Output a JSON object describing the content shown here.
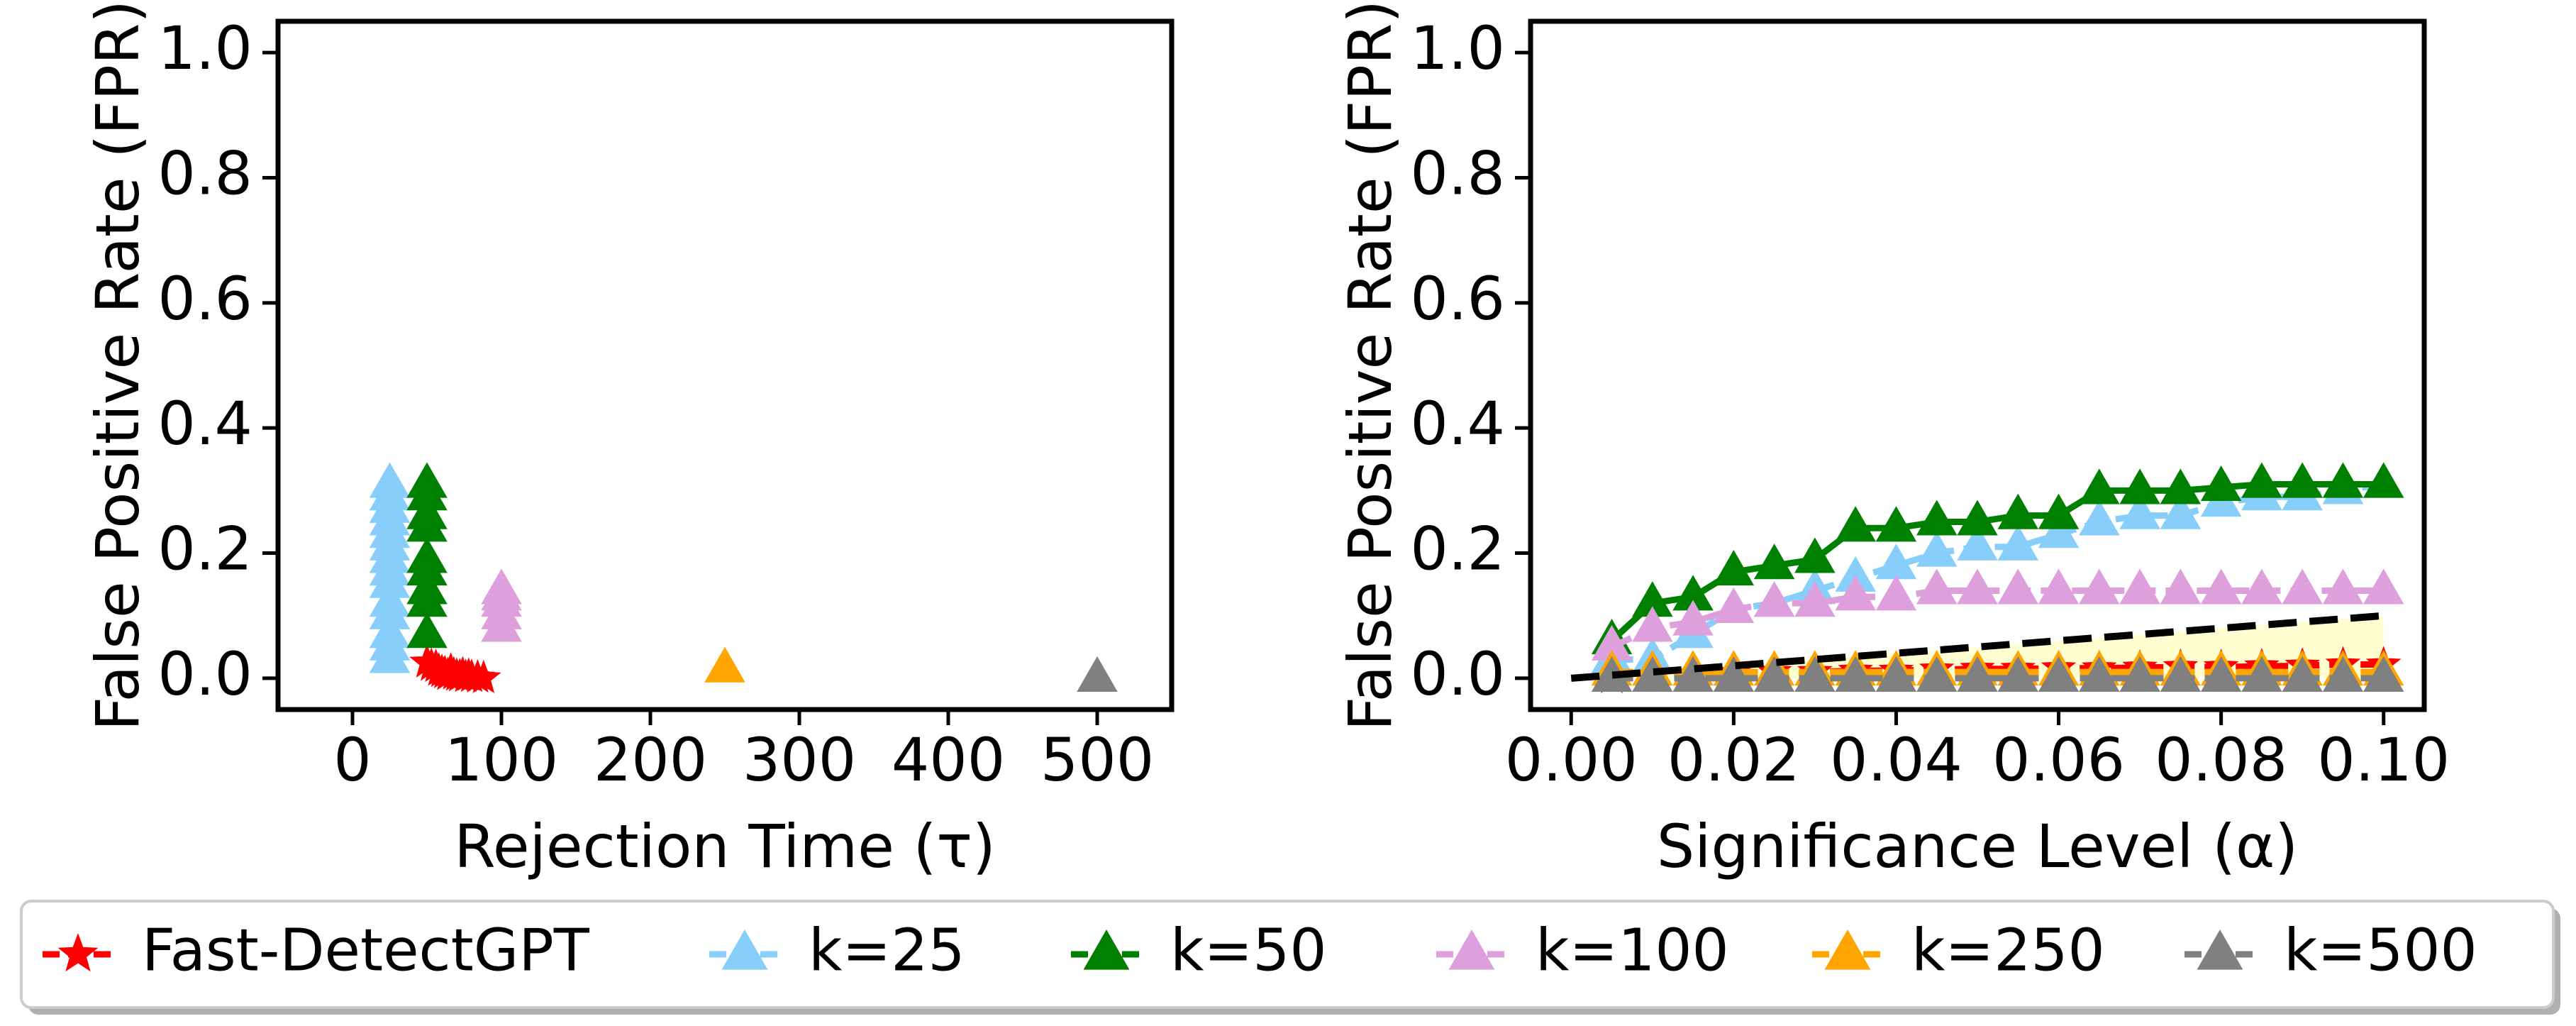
{
  "chart_data": [
    {
      "type": "scatter",
      "xlabel": "Rejection Time (τ)",
      "ylabel": "False Positive Rate (FPR)",
      "xlim": [
        -50,
        550
      ],
      "ylim": [
        -0.05,
        1.05
      ],
      "xticks": [
        0,
        100,
        200,
        300,
        400,
        500
      ],
      "yticks": [
        0.0,
        0.2,
        0.4,
        0.6,
        0.8,
        1.0
      ],
      "xtick_labels": [
        "0",
        "100",
        "200",
        "300",
        "400",
        "500"
      ],
      "ytick_labels": [
        "0.0",
        "0.2",
        "0.4",
        "0.6",
        "0.8",
        "1.0"
      ],
      "grid": false,
      "series": [
        {
          "name": "Fast-DetectGPT",
          "color": "#ff0000",
          "marker": "star",
          "points": [
            [
              50,
              0.025
            ],
            [
              53,
              0.02
            ],
            [
              56,
              0.018
            ],
            [
              58,
              0.012
            ],
            [
              60,
              0.01
            ],
            [
              62,
              0.008
            ],
            [
              64,
              0.005
            ],
            [
              66,
              0.012
            ],
            [
              68,
              0.006
            ],
            [
              70,
              0.004
            ],
            [
              72,
              0.003
            ],
            [
              74,
              0.006
            ],
            [
              76,
              0.002
            ],
            [
              78,
              0.004
            ],
            [
              80,
              0.002
            ],
            [
              84,
              0.001
            ],
            [
              88,
              0.0
            ]
          ]
        },
        {
          "name": "k=25",
          "color": "#87cefa",
          "marker": "triangle",
          "points": [
            [
              25,
              0.03
            ],
            [
              25,
              0.05
            ],
            [
              25,
              0.07
            ],
            [
              25,
              0.1
            ],
            [
              25,
              0.12
            ],
            [
              25,
              0.15
            ],
            [
              25,
              0.17
            ],
            [
              25,
              0.19
            ],
            [
              25,
              0.21
            ],
            [
              25,
              0.23
            ],
            [
              25,
              0.25
            ],
            [
              25,
              0.27
            ],
            [
              25,
              0.29
            ],
            [
              25,
              0.31
            ]
          ]
        },
        {
          "name": "k=50",
          "color": "#008000",
          "marker": "triangle",
          "points": [
            [
              50,
              0.07
            ],
            [
              50,
              0.12
            ],
            [
              50,
              0.14
            ],
            [
              50,
              0.17
            ],
            [
              50,
              0.19
            ],
            [
              50,
              0.24
            ],
            [
              50,
              0.26
            ],
            [
              50,
              0.29
            ],
            [
              50,
              0.31
            ]
          ]
        },
        {
          "name": "k=100",
          "color": "#dda0dd",
          "marker": "triangle",
          "points": [
            [
              100,
              0.08
            ],
            [
              100,
              0.1
            ],
            [
              100,
              0.12
            ],
            [
              100,
              0.13
            ],
            [
              100,
              0.14
            ]
          ]
        },
        {
          "name": "k=250",
          "color": "#ffa500",
          "marker": "triangle",
          "points": [
            [
              250,
              0.015
            ]
          ]
        },
        {
          "name": "k=500",
          "color": "#808080",
          "marker": "triangle",
          "points": [
            [
              500,
              0.0
            ]
          ]
        }
      ]
    },
    {
      "type": "line",
      "xlabel": "Significance Level (α)",
      "ylabel": "False Positive Rate (FPR)",
      "xlim": [
        -0.005,
        0.105
      ],
      "ylim": [
        -0.05,
        1.05
      ],
      "xticks": [
        0.0,
        0.02,
        0.04,
        0.06,
        0.08,
        0.1
      ],
      "yticks": [
        0.0,
        0.2,
        0.4,
        0.6,
        0.8,
        1.0
      ],
      "xtick_labels": [
        "0.00",
        "0.02",
        "0.04",
        "0.06",
        "0.08",
        "0.10"
      ],
      "ytick_labels": [
        "0.0",
        "0.2",
        "0.4",
        "0.6",
        "0.8",
        "1.0"
      ],
      "grid": false,
      "x": [
        0.005,
        0.01,
        0.015,
        0.02,
        0.025,
        0.03,
        0.035,
        0.04,
        0.045,
        0.05,
        0.055,
        0.06,
        0.065,
        0.07,
        0.075,
        0.08,
        0.085,
        0.09,
        0.095,
        0.1
      ],
      "reference_line": {
        "from": [
          0.0,
          0.0
        ],
        "to": [
          0.1,
          0.1
        ],
        "color": "#000000"
      },
      "shaded_region": {
        "between": "y=0 and y=x",
        "color": "#ffffcc"
      },
      "series": [
        {
          "name": "Fast-DetectGPT",
          "color": "#ff0000",
          "marker": "star",
          "values": [
            0.0,
            0.004,
            0.006,
            0.008,
            0.01,
            0.01,
            0.012,
            0.012,
            0.014,
            0.015,
            0.015,
            0.016,
            0.016,
            0.017,
            0.018,
            0.018,
            0.019,
            0.02,
            0.022,
            0.022
          ]
        },
        {
          "name": "k=25",
          "color": "#87cefa",
          "marker": "triangle",
          "values": [
            0.03,
            0.03,
            0.07,
            0.11,
            0.12,
            0.14,
            0.16,
            0.18,
            0.2,
            0.21,
            0.21,
            0.23,
            0.25,
            0.26,
            0.26,
            0.28,
            0.29,
            0.29,
            0.3,
            0.31
          ]
        },
        {
          "name": "k=50",
          "color": "#008000",
          "marker": "triangle",
          "values": [
            0.06,
            0.12,
            0.13,
            0.17,
            0.18,
            0.19,
            0.24,
            0.24,
            0.25,
            0.25,
            0.26,
            0.26,
            0.3,
            0.3,
            0.3,
            0.305,
            0.31,
            0.31,
            0.31,
            0.31
          ]
        },
        {
          "name": "k=100",
          "color": "#dda0dd",
          "marker": "triangle",
          "values": [
            0.05,
            0.08,
            0.09,
            0.11,
            0.12,
            0.12,
            0.13,
            0.13,
            0.14,
            0.14,
            0.14,
            0.14,
            0.14,
            0.14,
            0.14,
            0.14,
            0.14,
            0.14,
            0.14,
            0.14
          ]
        },
        {
          "name": "k=250",
          "color": "#ffa500",
          "marker": "triangle",
          "values": [
            0.01,
            0.01,
            0.01,
            0.01,
            0.01,
            0.01,
            0.01,
            0.01,
            0.01,
            0.01,
            0.01,
            0.01,
            0.01,
            0.01,
            0.01,
            0.01,
            0.01,
            0.01,
            0.01,
            0.01
          ]
        },
        {
          "name": "k=500",
          "color": "#808080",
          "marker": "triangle",
          "values": [
            0.0,
            0.0,
            0.0,
            0.0,
            0.0,
            0.0,
            0.0,
            0.0,
            0.0,
            0.0,
            0.0,
            0.0,
            0.0,
            0.0,
            0.0,
            0.0,
            0.0,
            0.0,
            0.0,
            0.0
          ]
        }
      ]
    }
  ],
  "legend": {
    "placement": "bottom",
    "entries": [
      {
        "label": "Fast-DetectGPT",
        "color": "#ff0000",
        "marker": "star"
      },
      {
        "label": "k=25",
        "color": "#87cefa",
        "marker": "triangle"
      },
      {
        "label": "k=50",
        "color": "#008000",
        "marker": "triangle"
      },
      {
        "label": "k=100",
        "color": "#dda0dd",
        "marker": "triangle"
      },
      {
        "label": "k=250",
        "color": "#ffa500",
        "marker": "triangle"
      },
      {
        "label": "k=500",
        "color": "#808080",
        "marker": "triangle"
      }
    ]
  }
}
